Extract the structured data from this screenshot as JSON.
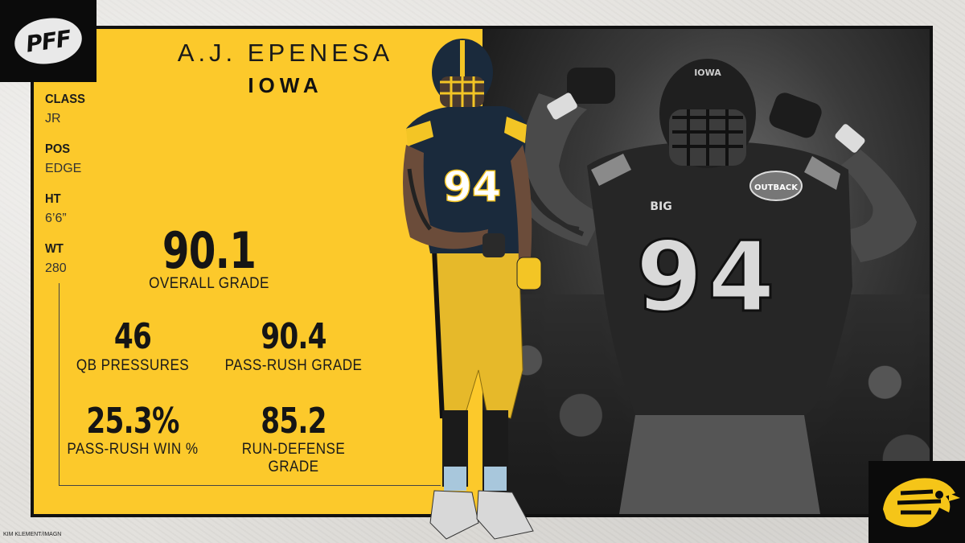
{
  "branding": {
    "logo_text": "PFF",
    "team_logo_icon": "hawkeye-logo-icon"
  },
  "player": {
    "name": "A.J. EPENESA",
    "school": "IOWA",
    "jersey_number": "94",
    "jersey_patch_text": "OUTBACK",
    "jersey_conference_text": "BIG",
    "helmet_text": "IOWA"
  },
  "bio": [
    {
      "label": "CLASS",
      "value": "JR"
    },
    {
      "label": "POS",
      "value": "EDGE"
    },
    {
      "label": "HT",
      "value": "6’6”"
    },
    {
      "label": "WT",
      "value": "280"
    }
  ],
  "overall": {
    "value": "90.1",
    "label": "OVERALL GRADE"
  },
  "stats": [
    {
      "value": "46",
      "label": "QB PRESSURES"
    },
    {
      "value": "90.4",
      "label": "PASS-RUSH GRADE"
    },
    {
      "value": "25.3%",
      "label": "PASS-RUSH WIN %"
    },
    {
      "value": "85.2",
      "label": "RUN-DEFENSE GRADE"
    }
  ],
  "photo_credit": "KIM KLEMENT/IMAGN",
  "colors": {
    "accent_yellow": "#fcc92b",
    "frame_black": "#111111",
    "text_dark": "#151515"
  }
}
